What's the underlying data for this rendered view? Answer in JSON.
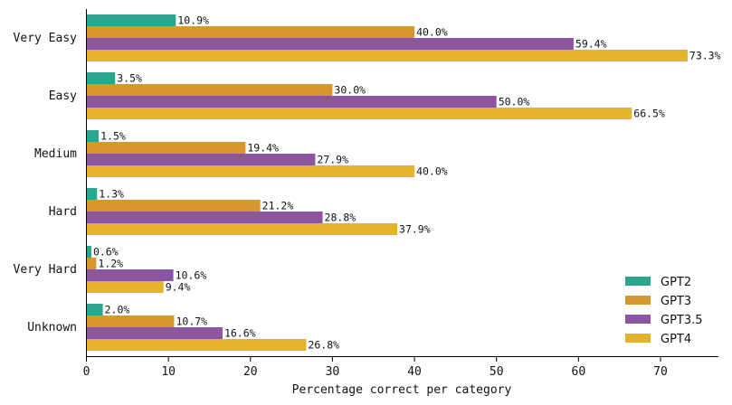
{
  "chart_data": {
    "type": "bar",
    "orientation": "horizontal",
    "categories": [
      "Very Easy",
      "Easy",
      "Medium",
      "Hard",
      "Very Hard",
      "Unknown"
    ],
    "series": [
      {
        "name": "GPT2",
        "color": "#2ca58d",
        "values": [
          10.9,
          3.5,
          1.5,
          1.3,
          0.6,
          2.0
        ],
        "labels": [
          "10.9%",
          "3.5%",
          "1.5%",
          "1.3%",
          "0.6%",
          "2.0%"
        ]
      },
      {
        "name": "GPT3",
        "color": "#d8962e",
        "values": [
          40.0,
          30.0,
          19.4,
          21.2,
          1.2,
          10.7
        ],
        "labels": [
          "40.0%",
          "30.0%",
          "19.4%",
          "21.2%",
          "1.2%",
          "10.7%"
        ]
      },
      {
        "name": "GPT3.5",
        "color": "#8a55a3",
        "values": [
          59.4,
          50.0,
          27.9,
          28.8,
          10.6,
          16.6
        ],
        "labels": [
          "59.4%",
          "50.0%",
          "27.9%",
          "28.8%",
          "10.6%",
          "16.6%"
        ]
      },
      {
        "name": "GPT4",
        "color": "#e4b42a",
        "values": [
          73.3,
          66.5,
          40.0,
          37.9,
          9.4,
          26.8
        ],
        "labels": [
          "73.3%",
          "66.5%",
          "40.0%",
          "37.9%",
          "9.4%",
          "26.8%"
        ]
      }
    ],
    "xlabel": "Percentage correct per category",
    "ylabel": "",
    "title": "",
    "xlim": [
      0,
      77
    ],
    "xticks": [
      0,
      10,
      20,
      30,
      40,
      50,
      60,
      70
    ],
    "xtick_labels": [
      "0",
      "10",
      "20",
      "30",
      "40",
      "50",
      "60",
      "70"
    ],
    "grid": false,
    "legend_position": "lower-right"
  }
}
